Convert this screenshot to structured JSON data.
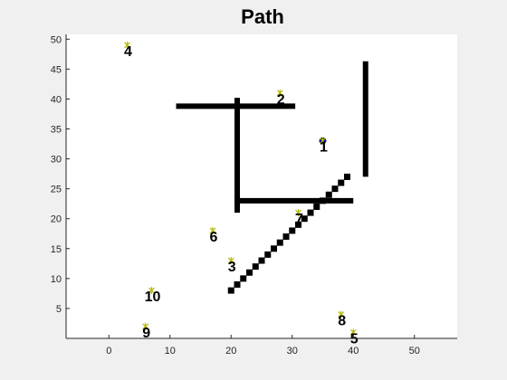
{
  "chart_data": {
    "type": "scatter",
    "title": "Path",
    "xlabel": "",
    "ylabel": "",
    "xlim": [
      -7,
      57
    ],
    "ylim": [
      0,
      50.8
    ],
    "xticks": [
      0,
      10,
      20,
      30,
      40,
      50
    ],
    "yticks": [
      5,
      10,
      15,
      20,
      25,
      30,
      35,
      40,
      45,
      50
    ],
    "grid": false,
    "colors": {
      "figure_bg": "#f0f0f0",
      "axes_bg": "#ffffff",
      "obstacle": "#000000",
      "path": "#000000",
      "current": "#0000cc",
      "waypoint_marker": "#b5b800"
    },
    "obstacles": [
      {
        "x": [
          11,
          30.5
        ],
        "y": [
          38.8,
          38.8
        ]
      },
      {
        "x": [
          21,
          21
        ],
        "y": [
          21,
          40.2
        ]
      },
      {
        "x": [
          21,
          40
        ],
        "y": [
          23,
          23
        ]
      },
      {
        "x": [
          42,
          42
        ],
        "y": [
          27,
          46.3
        ]
      }
    ],
    "path": {
      "x": [
        20,
        21,
        22,
        23,
        24,
        25,
        26,
        27,
        28,
        29,
        30,
        31,
        32,
        33,
        34,
        35,
        36,
        37,
        38,
        39
      ],
      "y": [
        8,
        9,
        10,
        11,
        12,
        13,
        14,
        15,
        16,
        17,
        18,
        19,
        20,
        21,
        22,
        23,
        24,
        25,
        26,
        27
      ]
    },
    "current_position": {
      "x": 35,
      "y": 33
    },
    "waypoints": [
      {
        "label": "1",
        "x": 35,
        "y": 33
      },
      {
        "label": "2",
        "x": 28,
        "y": 41
      },
      {
        "label": "3",
        "x": 20,
        "y": 13
      },
      {
        "label": "4",
        "x": 3,
        "y": 49
      },
      {
        "label": "5",
        "x": 40,
        "y": 1
      },
      {
        "label": "6",
        "x": 17,
        "y": 18
      },
      {
        "label": "7",
        "x": 31,
        "y": 21
      },
      {
        "label": "8",
        "x": 38,
        "y": 4
      },
      {
        "label": "9",
        "x": 6,
        "y": 2
      },
      {
        "label": "10",
        "x": 7,
        "y": 8
      }
    ]
  }
}
